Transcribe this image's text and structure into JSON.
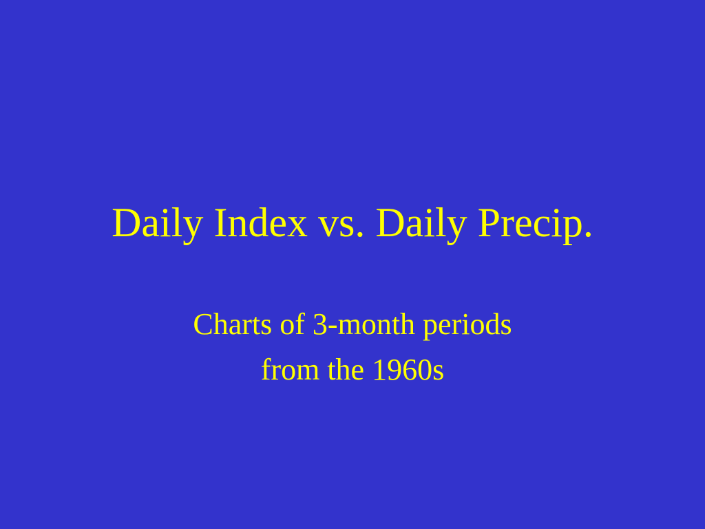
{
  "slide": {
    "background_color": "#3333cc",
    "text_color": "#ffff00",
    "title": "Daily Index vs. Daily Precip.",
    "subtitle_lines": [
      "Charts of 3-month periods",
      "from the 1960s"
    ]
  }
}
